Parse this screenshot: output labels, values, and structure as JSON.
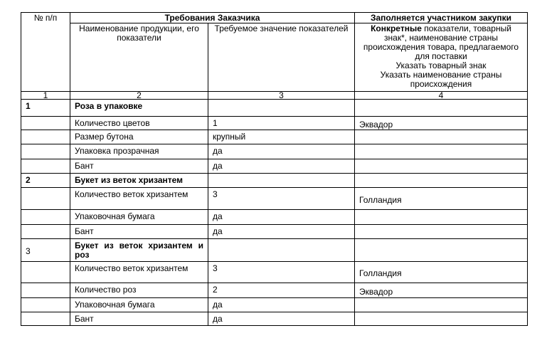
{
  "header": {
    "num_col": "№ п/п",
    "customer_requirements": "Требования Заказчика",
    "participant_fill": "Заполняется участником закупки",
    "product_name_col": "Наименование продукции, его показатели",
    "required_value_col": "Требуемое значение показателей",
    "specific_bold": "Конкретные",
    "specific_rest": " показатели, товарный знак*, наименование страны происхождения товара, предлагаемого для поставки",
    "specify_trademark": "Указать товарный знак",
    "specify_country": "Указать наименование страны происхождения",
    "col_numbers": [
      "1",
      "2",
      "3",
      "4"
    ]
  },
  "groups": [
    {
      "num": "1",
      "title": "Роза в упаковке",
      "rows": [
        {
          "name": "Количество цветов",
          "value": "1",
          "country": "Эквадор"
        },
        {
          "name": "Размер бутона",
          "value": "крупный",
          "country": ""
        },
        {
          "name": "Упаковка прозрачная",
          "value": "да",
          "country": ""
        },
        {
          "name": "Бант",
          "value": "да",
          "country": ""
        }
      ]
    },
    {
      "num": "2",
      "title": "Букет из веток хризантем",
      "rows": [
        {
          "name": "Количество веток хризантем",
          "value": "3",
          "country": "Голландия"
        },
        {
          "name": "Упаковочная бумага",
          "value": "да",
          "country": ""
        },
        {
          "name": "Бант",
          "value": "да",
          "country": ""
        }
      ]
    },
    {
      "num": "3",
      "title": "Букет из веток хризантем и роз",
      "rows": [
        {
          "name": "Количество веток хризантем",
          "value": "3",
          "country": "Голландия"
        },
        {
          "name": "Количество роз",
          "value": "2",
          "country": "Эквадор"
        },
        {
          "name": "Упаковочная бумага",
          "value": "да",
          "country": ""
        },
        {
          "name": "Бант",
          "value": "да",
          "country": ""
        }
      ]
    }
  ]
}
